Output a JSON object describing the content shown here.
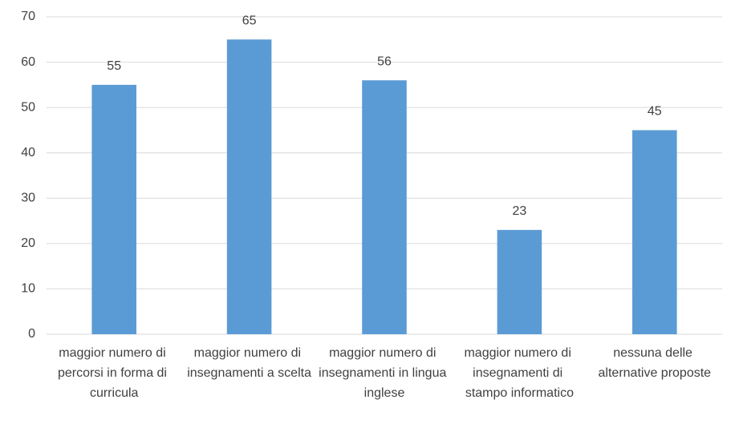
{
  "chart_data": {
    "type": "bar",
    "categories": [
      "maggior numero di percorsi in forma di curricula",
      "maggior numero di insegnamenti a scelta",
      "maggior numero di insegnamenti in lingua inglese",
      "maggior numero di insegnamenti di stampo informatico",
      "nessuna delle alternative proposte"
    ],
    "values": [
      55,
      65,
      56,
      23,
      45
    ],
    "color": "#5b9bd5",
    "ylim": [
      0,
      70
    ],
    "yticks": [
      0,
      10,
      20,
      30,
      40,
      50,
      60,
      70
    ],
    "grid": true
  }
}
